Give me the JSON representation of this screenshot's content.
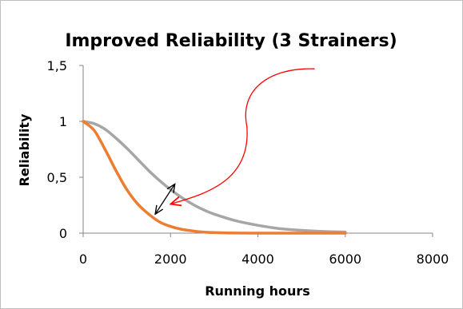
{
  "chart_data": {
    "type": "line",
    "title": "Improved Reliability  (3 Strainers)",
    "xlabel": "Running hours",
    "ylabel": "Reliability",
    "xlim": [
      0,
      8000
    ],
    "ylim": [
      0,
      1.5
    ],
    "x_ticks": [
      "0",
      "2000",
      "4000",
      "6000",
      "8000"
    ],
    "y_ticks": [
      "0",
      "0,5",
      "1",
      "1,5"
    ],
    "grid": false,
    "legend": "none",
    "series": [
      {
        "color": "#a6a6a6",
        "x": [
          0,
          250,
          500,
          750,
          1000,
          1250,
          1500,
          1750,
          2000,
          2250,
          2500,
          2750,
          3000,
          3500,
          4000,
          4500,
          5000,
          5500,
          6000
        ],
        "y": [
          1.0,
          0.98,
          0.93,
          0.85,
          0.76,
          0.66,
          0.56,
          0.47,
          0.39,
          0.32,
          0.26,
          0.21,
          0.17,
          0.11,
          0.07,
          0.04,
          0.025,
          0.015,
          0.01
        ]
      },
      {
        "color": "#ed7d31",
        "x": [
          0,
          250,
          500,
          750,
          1000,
          1250,
          1500,
          1750,
          2000,
          2250,
          2500,
          2750,
          3000,
          3500,
          4000,
          4500,
          5000,
          5500,
          6000
        ],
        "y": [
          1.0,
          0.92,
          0.75,
          0.56,
          0.39,
          0.26,
          0.17,
          0.1,
          0.06,
          0.035,
          0.02,
          0.01,
          0.005,
          0.001,
          0.0,
          0.0,
          0.0,
          0.0,
          0.0
        ]
      }
    ],
    "annotations": [
      {
        "type": "double-arrow",
        "color": "#000000",
        "from": [
          1650,
          0.17
        ],
        "to": [
          2100,
          0.44
        ]
      },
      {
        "type": "curved-arrow",
        "color": "#ff0000",
        "from": [
          5300,
          1.47
        ],
        "to": [
          2000,
          0.26
        ]
      }
    ]
  }
}
